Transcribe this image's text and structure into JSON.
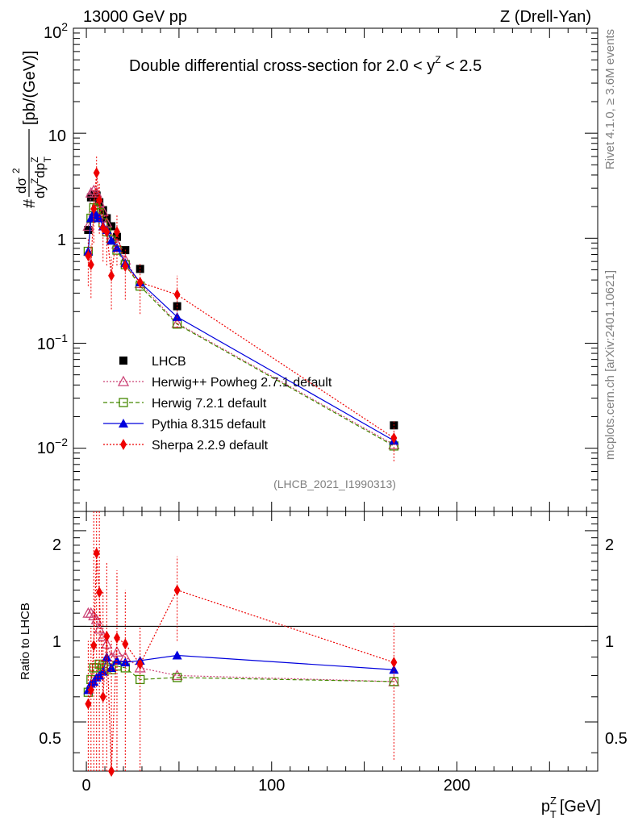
{
  "header": {
    "left": "13000 GeV pp",
    "right": "Z (Drell-Yan)"
  },
  "side_text": {
    "rivet": "Rivet 4.1.0, ≥ 3.6M events",
    "mcplots": "mcplots.cern.ch [arXiv:2401.10621]"
  },
  "chart_data": {
    "type": "scatter",
    "title": "Double differential cross-section for 2.0 < y^Z < 2.5",
    "analysis_tag": "(LHCB_2021_I1990313)",
    "ylabel": "# dσ / dy^Z dp_T^Z [pb/(GeV)]",
    "ylabel_parts": {
      "hash": "#",
      "num": "dσ",
      "num_sup": "2",
      "den": "dy",
      "den_sup1": "Z",
      "den_mid": "dp",
      "den_sub": "T",
      "den_sup2": "Z",
      "units": "[pb/(GeV)]"
    },
    "xlabel": "p_T^Z [GeV]",
    "xlabel_parts": {
      "base": "p",
      "sub": "T",
      "sup": "Z",
      "units": "[GeV]"
    },
    "ratio_ylabel": "Ratio to LHCB",
    "xlim": [
      -7,
      276
    ],
    "ylim_log": [
      0.0025,
      100
    ],
    "ratio_ylim": [
      0.35,
      2.3
    ],
    "x_ticks": [
      "0",
      "100",
      "200"
    ],
    "y_ticks": [
      {
        "base": "10",
        "exp": "2"
      },
      {
        "base": "10",
        "exp": ""
      },
      {
        "base": "1",
        "exp": ""
      },
      {
        "base": "10",
        "exp": "−1"
      },
      {
        "base": "10",
        "exp": "−2"
      }
    ],
    "ratio_ticks": [
      "2",
      "1",
      "0.5"
    ],
    "x": [
      1,
      2.5,
      4,
      5.5,
      7,
      9,
      11,
      13.5,
      16.5,
      21,
      29,
      49,
      166
    ],
    "series": [
      {
        "name": "LHCB",
        "color": "#000000",
        "values": [
          1.2,
          2.45,
          2.6,
          2.55,
          2.2,
          1.85,
          1.55,
          1.3,
          1.03,
          0.77,
          0.51,
          0.225,
          0.0165
        ],
        "ratio": [
          1,
          1,
          1,
          1,
          1,
          1,
          1,
          1,
          1,
          1,
          1,
          1,
          1
        ]
      },
      {
        "name": "Herwig++ Powheg 2.7.1 default",
        "color": "#cc4477",
        "values": [
          1.3,
          2.7,
          2.85,
          2.7,
          2.2,
          1.8,
          1.4,
          1.0,
          0.88,
          0.62,
          0.37,
          0.155,
          0.0108
        ],
        "ratio": [
          1.1,
          1.1,
          1.08,
          1.05,
          0.98,
          0.93,
          0.88,
          0.8,
          0.83,
          0.8,
          0.74,
          0.7,
          0.67
        ]
      },
      {
        "name": "Herwig 7.2.1 default",
        "color": "#448800",
        "values": [
          0.75,
          1.55,
          1.95,
          1.9,
          1.75,
          1.4,
          1.15,
          0.96,
          0.77,
          0.56,
          0.35,
          0.152,
          0.0105
        ],
        "ratio": [
          0.62,
          0.68,
          0.74,
          0.74,
          0.76,
          0.75,
          0.74,
          0.73,
          0.75,
          0.74,
          0.68,
          0.69,
          0.67
        ]
      },
      {
        "name": "Pythia 8.315 default",
        "color": "#0000dd",
        "values": [
          0.75,
          1.55,
          1.75,
          1.65,
          1.55,
          1.3,
          1.2,
          0.95,
          0.81,
          0.58,
          0.38,
          0.178,
          0.0118
        ],
        "ratio": [
          0.63,
          0.66,
          0.67,
          0.69,
          0.7,
          0.72,
          0.8,
          0.74,
          0.78,
          0.77,
          0.78,
          0.81,
          0.73
        ]
      },
      {
        "name": "Sherpa 2.2.9 default",
        "color": "#ee0000",
        "values": [
          0.68,
          0.56,
          1.9,
          4.2,
          2.3,
          1.25,
          1.15,
          0.44,
          1.15,
          0.54,
          0.38,
          0.29,
          0.0125
        ],
        "ratio": [
          0.57,
          0.63,
          0.87,
          1.7,
          1.28,
          0.6,
          0.93,
          0.35,
          0.92,
          0.88,
          0.76,
          1.3,
          0.77
        ],
        "err_lo": [
          0.35,
          0.27,
          0.9,
          2.0,
          1.1,
          0.6,
          0.55,
          0.21,
          0.55,
          0.26,
          0.19,
          0.14,
          0.0075
        ],
        "err_hi": [
          1.0,
          0.85,
          2.9,
          6.2,
          3.4,
          1.9,
          1.7,
          0.66,
          1.7,
          0.8,
          0.57,
          0.44,
          0.018
        ],
        "ratio_lo": [
          0.35,
          0.35,
          0.35,
          0.35,
          0.35,
          0.35,
          0.35,
          0.35,
          0.35,
          0.35,
          0.35,
          0.9,
          0.38
        ],
        "ratio_hi": [
          0.9,
          1.0,
          2.3,
          2.3,
          2.3,
          1.3,
          1.6,
          0.9,
          1.5,
          1.3,
          1.0,
          1.66,
          1.02
        ]
      }
    ]
  }
}
